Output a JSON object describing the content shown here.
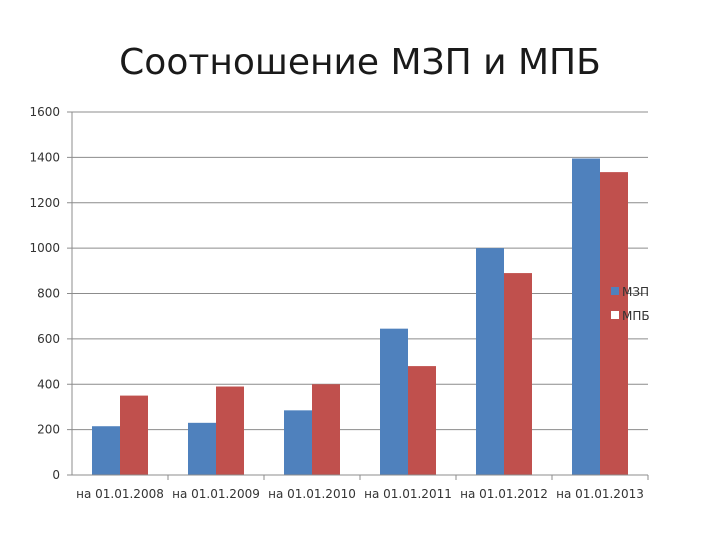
{
  "chart_data": {
    "type": "bar",
    "title": "Соотношение МЗП и МПБ",
    "xlabel": "",
    "ylabel": "",
    "categories": [
      "на 01.01.2008",
      "на 01.01.2009",
      "на 01.01.2010",
      "на 01.01.2011",
      "на 01.01.2012",
      "на 01.01.2013"
    ],
    "series": [
      {
        "name": "МЗП",
        "color": "#4f81bd",
        "values": [
          215,
          230,
          285,
          645,
          1000,
          1395
        ]
      },
      {
        "name": "МПБ",
        "color": "#c0504d",
        "values": [
          350,
          390,
          400,
          480,
          890,
          1335
        ]
      }
    ],
    "ylim": [
      0,
      1600
    ],
    "yticks": [
      0,
      200,
      400,
      600,
      800,
      1000,
      1200,
      1400,
      1600
    ],
    "grid": true,
    "legend_position": "right"
  }
}
